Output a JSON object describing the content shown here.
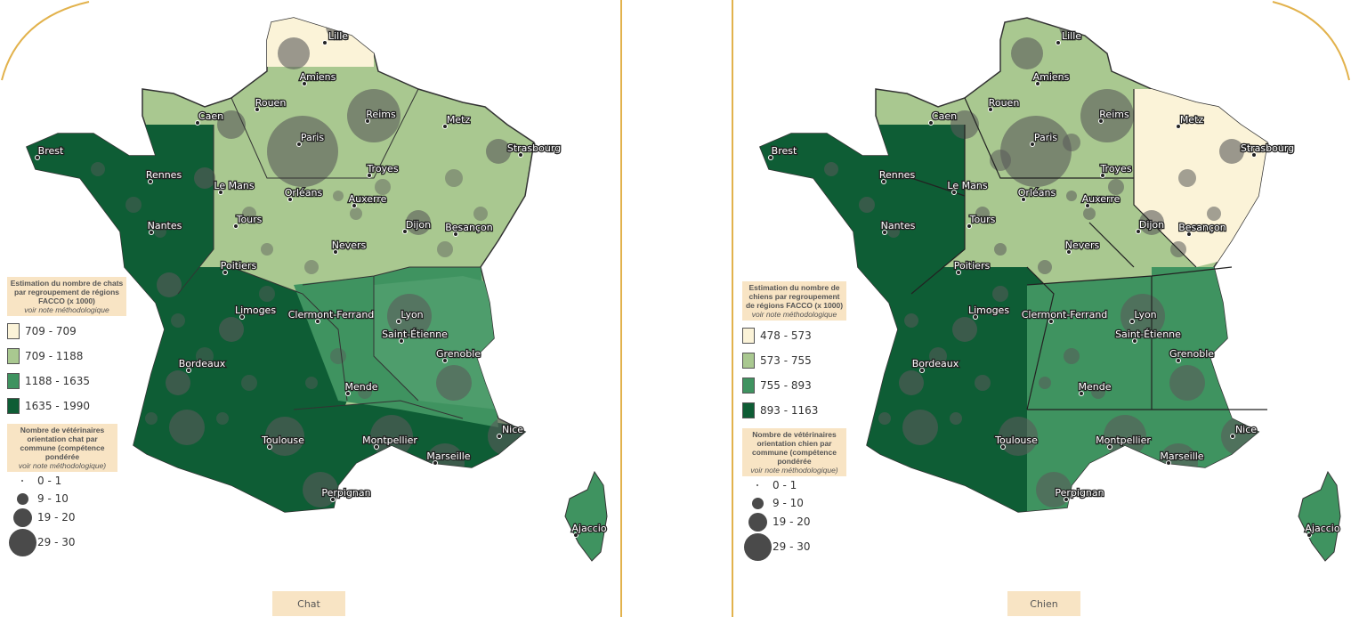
{
  "panels": [
    {
      "caption": "Chat",
      "legend_title": "Estimation du nombre de chats par regroupement de régions FACCO (x 1000)",
      "legend_note": "voir note méthodologique",
      "classes": [
        {
          "label": "709 - 709",
          "color": "#fbf3d8"
        },
        {
          "label": "709 - 1188",
          "color": "#a9c890"
        },
        {
          "label": "1188 - 1635",
          "color": "#3f9360"
        },
        {
          "label": "1635 - 1990",
          "color": "#0e5d35"
        }
      ],
      "size_title": "Nombre de vétérinaires orientation chat par commune (compétence pondérée",
      "size_note": "voir note méthodologique)",
      "sizes": [
        "0 - 1",
        "9 - 10",
        "19 - 20",
        "29 - 30"
      ]
    },
    {
      "caption": "Chien",
      "legend_title": "Estimation du nombre de chiens par regroupement de régions FACCO (x 1000)",
      "legend_note": "voir note méthodologique",
      "classes": [
        {
          "label": "478 - 573",
          "color": "#fbf3d8"
        },
        {
          "label": "573 - 755",
          "color": "#a9c890"
        },
        {
          "label": "755 - 893",
          "color": "#3f9360"
        },
        {
          "label": "893 - 1163",
          "color": "#0e5d35"
        }
      ],
      "size_title": "Nombre de vétérinaires orientation chien par commune (compétence pondérée",
      "size_note": "voir note méthodologique)",
      "sizes": [
        "0 - 1",
        "9 - 10",
        "19 - 20",
        "29 - 30"
      ]
    }
  ],
  "cities": [
    "Lille",
    "Amiens",
    "Rouen",
    "Caen",
    "Reims",
    "Metz",
    "Paris",
    "Strasbourg",
    "Brest",
    "Rennes",
    "Le Mans",
    "Orléans",
    "Troyes",
    "Auxerre",
    "Nantes",
    "Tours",
    "Dijon",
    "Besançon",
    "Nevers",
    "Poitiers",
    "Limoges",
    "Clermont-Ferrand",
    "Lyon",
    "Saint-Étienne",
    "Grenoble",
    "Bordeaux",
    "Mende",
    "Toulouse",
    "Montpellier",
    "Nice",
    "Marseille",
    "Perpignan",
    "Ajaccio"
  ]
}
